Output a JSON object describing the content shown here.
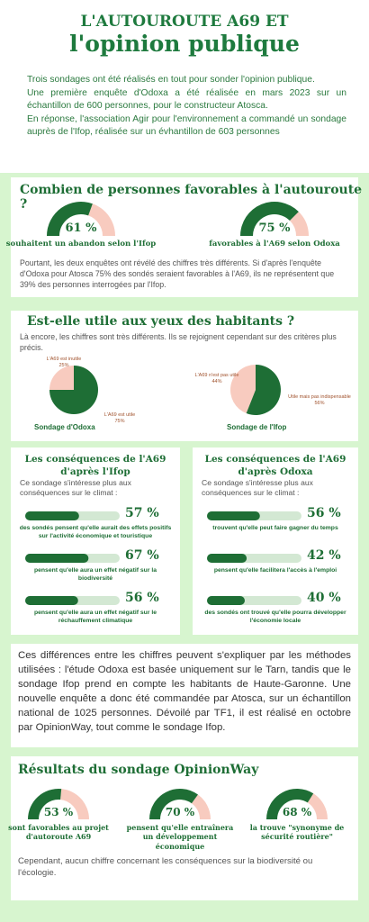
{
  "header": {
    "title_line1": "L'AUTOUROUTE A69 ET",
    "title_line2": "l'opinion publique"
  },
  "intro": [
    "Trois sondages ont été réalisés en tout pour sonder l'opinion publique.",
    "Une première enquête d'Odoxa a été réalisée en mars 2023 sur un échantillon de 600 personnes, pour le constructeur Atosca.",
    "En réponse, l'association Agir pour l'environnement a commandé un sondage auprès de l'Ifop, réalisée sur un évhantillon de 603 personnes"
  ],
  "colors": {
    "green": "#1e6e35",
    "pink": "#f8cbbf",
    "track": "#d3e8d3"
  },
  "favorables": {
    "title": "Combien de personnes favorables à l'autouroute ?",
    "gauges": [
      {
        "value": 61,
        "value_label": "61 %",
        "caption": "souhaitent un abandon selon l'Ifop"
      },
      {
        "value": 75,
        "value_label": "75 %",
        "caption": "favorables à l'A69 selon Odoxa"
      }
    ],
    "text": "Pourtant, les deux enquêtes ont révélé des chiffres très différents. Si d'après l'enquête d'Odoxa pour Atosca 75% des sondés seraient favorables à l'A69, ils ne représentent que 39% des personnes interrogées par l'Ifop."
  },
  "utile": {
    "title": "Est-elle utile aux yeux des habitants ?",
    "text": "Là encore, les chiffres sont très différents. Ils se rejoignent cependant sur des critères plus précis.",
    "pies": [
      {
        "caption": "Sondage d'Odoxa",
        "slices": [
          {
            "label": "L'A69 est inutile",
            "value": 25,
            "value_label": "25%"
          },
          {
            "label": "L'A69 est utile",
            "value": 75,
            "value_label": "75%"
          }
        ]
      },
      {
        "caption": "Sondage de l'Ifop",
        "slices": [
          {
            "label": "L'A69 n'est pas utile",
            "value": 44,
            "value_label": "44%"
          },
          {
            "label": "Utile mais pas indispensable",
            "value": 56,
            "value_label": "56%"
          }
        ]
      }
    ]
  },
  "consequences": [
    {
      "title": "Les conséquences de l'A69 d'après l'Ifop",
      "intro": "Ce sondage s'intéresse plus aux conséquences sur le climat :",
      "items": [
        {
          "value": 57,
          "value_label": "57 %",
          "label": "des sondés pensent qu'elle aurait des effets positifs sur l'activité économique et touristique"
        },
        {
          "value": 67,
          "value_label": "67 %",
          "label": "pensent qu'elle aura un effet négatif sur la biodiversité"
        },
        {
          "value": 56,
          "value_label": "56 %",
          "label": "pensent qu'elle aura un effet négatif sur le réchauffement climatique"
        }
      ]
    },
    {
      "title": "Les conséquences de l'A69 d'après Odoxa",
      "intro": "Ce sondage s'intéresse plus aux conséquences sur le climat :",
      "items": [
        {
          "value": 56,
          "value_label": "56 %",
          "label": "trouvent qu'elle peut faire gagner du temps"
        },
        {
          "value": 42,
          "value_label": "42 %",
          "label": "pensent qu'elle facilitera l'accès à l'emploi"
        },
        {
          "value": 40,
          "value_label": "40 %",
          "label": "des sondés ont trouvé qu'elle pourra développer l'économie locale"
        }
      ]
    }
  ],
  "explication": "Ces différences entre les chiffres peuvent s'expliquer par les méthodes utilisées : l'étude Odoxa est basée uniquement sur le Tarn, tandis que le sondage Ifop prend en compte les habitants de Haute-Garonne. Une nouvelle enquête a donc été commandée par Atosca, sur un échantillon national de 1025 personnes. Dévoilé par TF1, il est réalisé en octobre par OpinionWay, tout comme le sondage Ifop.",
  "opinionway": {
    "title": "Résultats du sondage OpinionWay",
    "gauges": [
      {
        "value": 53,
        "value_label": "53 %",
        "caption": "sont favorables au projet d'autoroute A69"
      },
      {
        "value": 70,
        "value_label": "70 %",
        "caption": "pensent qu'elle entraînera un développement économique"
      },
      {
        "value": 68,
        "value_label": "68 %",
        "caption": "la trouve \"synonyme de sécurité routière\""
      }
    ],
    "text": "Cependant, aucun chiffre concernant les conséquences sur la biodiversité ou l'écologie."
  }
}
